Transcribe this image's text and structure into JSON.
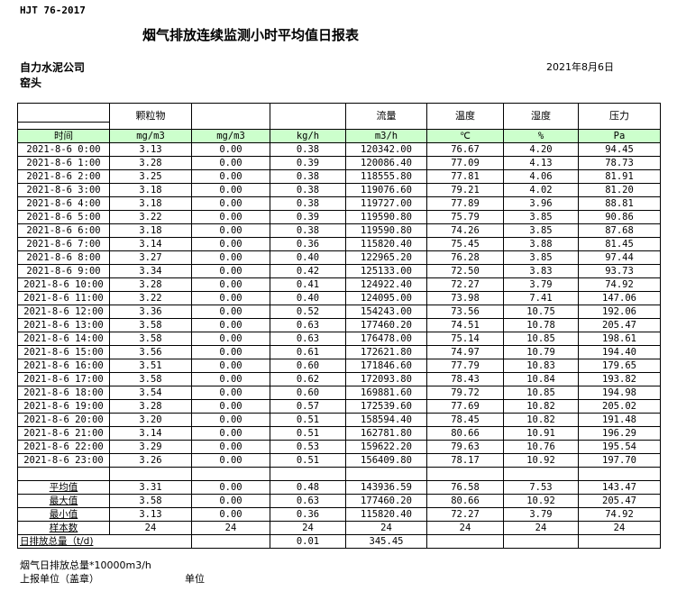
{
  "standard": "HJT  76-2017",
  "title": "烟气排放连续监测小时平均值日报表",
  "company": "自力水泥公司",
  "location": "窑头",
  "date": "2021年8月6日",
  "columns": [
    "",
    "颗粒物",
    "",
    "",
    "流量",
    "温度",
    "湿度",
    "压力"
  ],
  "units": [
    "时间",
    "mg/m3",
    "mg/m3",
    "kg/h",
    "m3/h",
    "℃",
    "%",
    "Pa"
  ],
  "rows": [
    [
      "2021-8-6 0:00",
      "3.13",
      "0.00",
      "0.38",
      "120342.00",
      "76.67",
      "4.20",
      "94.45"
    ],
    [
      "2021-8-6 1:00",
      "3.28",
      "0.00",
      "0.39",
      "120086.40",
      "77.09",
      "4.13",
      "78.73"
    ],
    [
      "2021-8-6 2:00",
      "3.25",
      "0.00",
      "0.38",
      "118555.80",
      "77.81",
      "4.06",
      "81.91"
    ],
    [
      "2021-8-6 3:00",
      "3.18",
      "0.00",
      "0.38",
      "119076.60",
      "79.21",
      "4.02",
      "81.20"
    ],
    [
      "2021-8-6 4:00",
      "3.18",
      "0.00",
      "0.38",
      "119727.00",
      "77.89",
      "3.96",
      "88.81"
    ],
    [
      "2021-8-6 5:00",
      "3.22",
      "0.00",
      "0.39",
      "119590.80",
      "75.79",
      "3.85",
      "90.86"
    ],
    [
      "2021-8-6 6:00",
      "3.18",
      "0.00",
      "0.38",
      "119590.80",
      "74.26",
      "3.85",
      "87.68"
    ],
    [
      "2021-8-6 7:00",
      "3.14",
      "0.00",
      "0.36",
      "115820.40",
      "75.45",
      "3.88",
      "81.45"
    ],
    [
      "2021-8-6 8:00",
      "3.27",
      "0.00",
      "0.40",
      "122965.20",
      "76.28",
      "3.85",
      "97.44"
    ],
    [
      "2021-8-6 9:00",
      "3.34",
      "0.00",
      "0.42",
      "125133.00",
      "72.50",
      "3.83",
      "93.73"
    ],
    [
      "2021-8-6 10:00",
      "3.28",
      "0.00",
      "0.41",
      "124922.40",
      "72.27",
      "3.79",
      "74.92"
    ],
    [
      "2021-8-6 11:00",
      "3.22",
      "0.00",
      "0.40",
      "124095.00",
      "73.98",
      "7.41",
      "147.06"
    ],
    [
      "2021-8-6 12:00",
      "3.36",
      "0.00",
      "0.52",
      "154243.00",
      "73.56",
      "10.75",
      "192.06"
    ],
    [
      "2021-8-6 13:00",
      "3.58",
      "0.00",
      "0.63",
      "177460.20",
      "74.51",
      "10.78",
      "205.47"
    ],
    [
      "2021-8-6 14:00",
      "3.58",
      "0.00",
      "0.63",
      "176478.00",
      "75.14",
      "10.85",
      "198.61"
    ],
    [
      "2021-8-6 15:00",
      "3.56",
      "0.00",
      "0.61",
      "172621.80",
      "74.97",
      "10.79",
      "194.40"
    ],
    [
      "2021-8-6 16:00",
      "3.51",
      "0.00",
      "0.60",
      "171846.60",
      "77.79",
      "10.83",
      "179.65"
    ],
    [
      "2021-8-6 17:00",
      "3.58",
      "0.00",
      "0.62",
      "172093.80",
      "78.43",
      "10.84",
      "193.82"
    ],
    [
      "2021-8-6 18:00",
      "3.54",
      "0.00",
      "0.60",
      "169881.60",
      "79.72",
      "10.85",
      "194.98"
    ],
    [
      "2021-8-6 19:00",
      "3.28",
      "0.00",
      "0.57",
      "172539.60",
      "77.69",
      "10.82",
      "205.02"
    ],
    [
      "2021-8-6 20:00",
      "3.20",
      "0.00",
      "0.51",
      "158594.40",
      "78.45",
      "10.82",
      "191.48"
    ],
    [
      "2021-8-6 21:00",
      "3.14",
      "0.00",
      "0.51",
      "162781.80",
      "80.66",
      "10.91",
      "196.29"
    ],
    [
      "2021-8-6 22:00",
      "3.29",
      "0.00",
      "0.53",
      "159622.20",
      "79.63",
      "10.76",
      "195.54"
    ],
    [
      "2021-8-6 23:00",
      "3.26",
      "0.00",
      "0.51",
      "156409.80",
      "78.17",
      "10.92",
      "197.70"
    ]
  ],
  "summary": [
    [
      "平均值",
      "3.31",
      "0.00",
      "0.48",
      "143936.59",
      "76.58",
      "7.53",
      "143.47"
    ],
    [
      "最大值",
      "3.58",
      "0.00",
      "0.63",
      "177460.20",
      "80.66",
      "10.92",
      "205.47"
    ],
    [
      "最小值",
      "3.13",
      "0.00",
      "0.36",
      "115820.40",
      "72.27",
      "3.79",
      "74.92"
    ],
    [
      "样本数",
      "24",
      "24",
      "24",
      "24",
      "24",
      "24",
      "24"
    ]
  ],
  "daily_total": {
    "label": "日排放总量（t/d)",
    "emission": "0.01",
    "flow": "345.45"
  },
  "footer": {
    "flow_note": "烟气日排放总量*10000m3/h",
    "reporter": "上报单位（盖章）",
    "unit": "单位"
  }
}
